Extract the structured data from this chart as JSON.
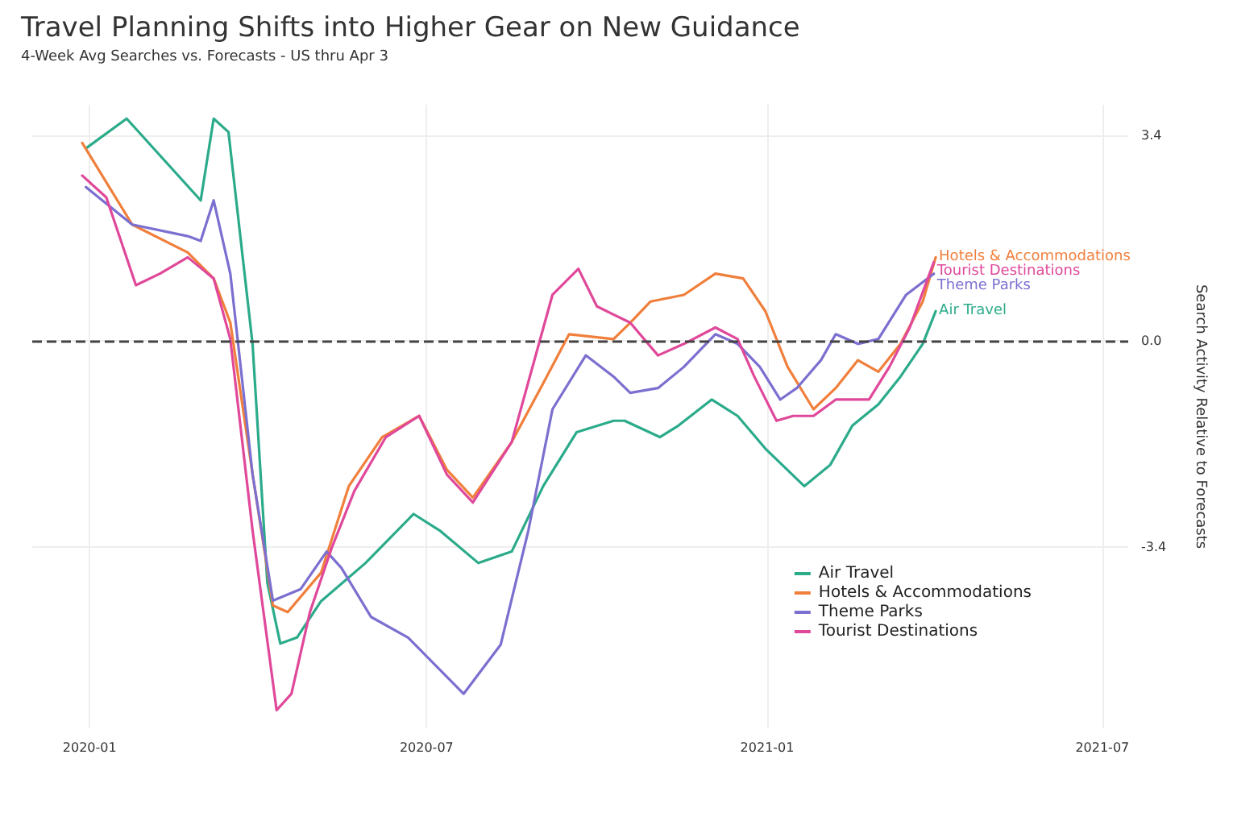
{
  "chart_data": {
    "type": "line",
    "title": "Travel Planning Shifts into Higher Gear on New Guidance",
    "subtitle": "4-Week Avg Searches vs. Forecasts - US thru Apr 3",
    "ylabel": "Search Activity Relative to Forecasts",
    "xlim": [
      "2019-12-01",
      "2021-07-15"
    ],
    "xticks": [
      "2020-01",
      "2020-07",
      "2021-01",
      "2021-07"
    ],
    "ylim": [
      -6.4,
      3.9
    ],
    "yticks": [
      {
        "value": -3.4,
        "label": "-3.4"
      },
      {
        "value": 0,
        "label": "0.0"
      },
      {
        "value": 3.4,
        "label": "3.4"
      }
    ],
    "grid": true,
    "legend": "bottom right",
    "marker": "none",
    "line_style": "solid",
    "ref_lines": [
      {
        "axis": "y",
        "value": 0,
        "color": "#444444",
        "line_style": "dashed"
      }
    ],
    "series": [
      {
        "name": "Air Travel",
        "color": "#2bab8a",
        "x": [
          "2019-12-30",
          "2020-01-21",
          "2020-03-01",
          "2020-03-08",
          "2020-03-16",
          "2020-03-29",
          "2020-04-06",
          "2020-04-13",
          "2020-04-22",
          "2020-05-05",
          "2020-05-29",
          "2020-06-24",
          "2020-07-08",
          "2020-07-29",
          "2020-08-16",
          "2020-09-02",
          "2020-09-20",
          "2020-10-10",
          "2020-10-16",
          "2020-11-04",
          "2020-11-14",
          "2020-12-02",
          "2020-12-16",
          "2020-12-31",
          "2021-01-21",
          "2021-02-04",
          "2021-02-16",
          "2021-03-02",
          "2021-03-14",
          "2021-03-26",
          "2021-04-02"
        ],
        "values": [
          3.18,
          3.67,
          2.32,
          3.67,
          3.45,
          -0.05,
          -4.0,
          -5.0,
          -4.9,
          -4.3,
          -3.67,
          -2.86,
          -3.13,
          -3.67,
          -3.48,
          -2.4,
          -1.51,
          -1.32,
          -1.32,
          -1.59,
          -1.4,
          -0.97,
          -1.24,
          -1.78,
          -2.4,
          -2.05,
          -1.4,
          -1.05,
          -0.59,
          -0.05,
          0.49
        ]
      },
      {
        "name": "Hotels & Accommodations",
        "color": "#f07f3c",
        "x": [
          "2019-12-28",
          "2020-01-24",
          "2020-02-23",
          "2020-03-08",
          "2020-03-17",
          "2020-03-29",
          "2020-04-09",
          "2020-04-17",
          "2020-05-05",
          "2020-05-20",
          "2020-06-07",
          "2020-06-27",
          "2020-07-12",
          "2020-07-26",
          "2020-08-16",
          "2020-09-02",
          "2020-09-16",
          "2020-10-10",
          "2020-10-19",
          "2020-10-30",
          "2020-11-17",
          "2020-12-04",
          "2020-12-19",
          "2020-12-31",
          "2021-01-12",
          "2021-01-26",
          "2021-02-07",
          "2021-02-19",
          "2021-03-02",
          "2021-03-14",
          "2021-03-26",
          "2021-04-02"
        ],
        "values": [
          3.27,
          1.92,
          1.46,
          1.03,
          0.3,
          -2.2,
          -4.37,
          -4.48,
          -3.83,
          -2.4,
          -1.59,
          -1.24,
          -2.13,
          -2.59,
          -1.67,
          -0.7,
          0.11,
          0.03,
          0.3,
          0.65,
          0.76,
          1.11,
          1.03,
          0.49,
          -0.43,
          -1.13,
          -0.78,
          -0.32,
          -0.51,
          -0.05,
          0.65,
          1.38
        ]
      },
      {
        "name": "Theme Parks",
        "color": "#7b6fd0",
        "x": [
          "2019-12-30",
          "2020-01-24",
          "2020-02-23",
          "2020-03-01",
          "2020-03-08",
          "2020-03-17",
          "2020-03-29",
          "2020-04-09",
          "2020-04-24",
          "2020-05-08",
          "2020-05-16",
          "2020-06-01",
          "2020-06-21",
          "2020-07-21",
          "2020-08-10",
          "2020-08-25",
          "2020-09-07",
          "2020-09-25",
          "2020-10-10",
          "2020-10-19",
          "2020-11-03",
          "2020-11-17",
          "2020-12-04",
          "2020-12-16",
          "2020-12-28",
          "2021-01-08",
          "2021-01-17",
          "2021-01-30",
          "2021-02-07",
          "2021-02-19",
          "2021-03-02",
          "2021-03-17",
          "2021-04-01"
        ],
        "values": [
          2.54,
          1.92,
          1.73,
          1.65,
          2.32,
          1.11,
          -2.2,
          -4.29,
          -4.1,
          -3.48,
          -3.75,
          -4.56,
          -4.9,
          -5.83,
          -5.02,
          -3.13,
          -1.13,
          -0.24,
          -0.59,
          -0.86,
          -0.78,
          -0.43,
          0.11,
          -0.05,
          -0.43,
          -0.97,
          -0.78,
          -0.32,
          0.11,
          -0.05,
          0.03,
          0.76,
          1.11
        ]
      },
      {
        "name": "Tourist Destinations",
        "color": "#e0489a",
        "x": [
          "2019-12-28",
          "2020-01-10",
          "2020-01-26",
          "2020-02-08",
          "2020-02-23",
          "2020-03-08",
          "2020-03-17",
          "2020-03-29",
          "2020-04-11",
          "2020-04-19",
          "2020-04-29",
          "2020-05-11",
          "2020-05-23",
          "2020-06-09",
          "2020-06-27",
          "2020-07-12",
          "2020-07-26",
          "2020-08-16",
          "2020-09-07",
          "2020-09-21",
          "2020-10-01",
          "2020-10-19",
          "2020-11-03",
          "2020-11-17",
          "2020-12-04",
          "2020-12-16",
          "2020-12-25",
          "2021-01-06",
          "2021-01-15",
          "2021-01-26",
          "2021-02-07",
          "2021-02-25",
          "2021-03-08",
          "2021-03-19",
          "2021-04-01"
        ],
        "values": [
          2.73,
          2.37,
          0.92,
          1.11,
          1.38,
          1.03,
          0.03,
          -3.13,
          -6.1,
          -5.83,
          -4.48,
          -3.4,
          -2.48,
          -1.59,
          -1.24,
          -2.21,
          -2.67,
          -1.67,
          0.76,
          1.19,
          0.57,
          0.3,
          -0.24,
          -0.05,
          0.22,
          0.03,
          -0.59,
          -1.32,
          -1.24,
          -1.24,
          -0.97,
          -0.97,
          -0.43,
          0.22,
          1.3
        ]
      }
    ]
  }
}
